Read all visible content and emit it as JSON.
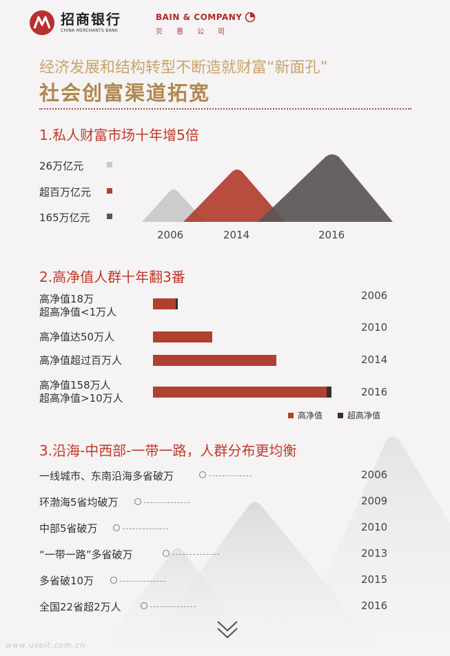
{
  "header": {
    "cmb_name_cn": "招商银行",
    "cmb_name_en": "CHINA MERCHANTS BANK",
    "bain_name_en": "BAIN & COMPANY",
    "bain_name_cn": "贝恩公司"
  },
  "title": {
    "line1": "经济发展和结构转型不断造就财富“新面孔”",
    "line2": "社会创富渠道拓宽"
  },
  "section1": {
    "title": "1.私人财富市场十年增5倍",
    "legend": [
      {
        "label": "26万亿元",
        "color": "#c8c8c8"
      },
      {
        "label": "超百万亿元",
        "color": "#b0402f"
      },
      {
        "label": "165万亿元",
        "color": "#5a5555"
      }
    ],
    "years": [
      "2006",
      "2014",
      "2016"
    ]
  },
  "section2": {
    "title": "2.高净值人群十年翻3番",
    "rows": [
      {
        "label_lines": [
          "高净值18万",
          "超高净值<1万人"
        ],
        "year": "2006",
        "hnw": 0.19,
        "uhnw": 0.01
      },
      {
        "label_lines": [
          "高净值达50万人"
        ],
        "year": "2010",
        "hnw": 0.33,
        "uhnw": 0
      },
      {
        "label_lines": [
          "高净值超过百万人"
        ],
        "year": "2014",
        "hnw": 0.69,
        "uhnw": 0
      },
      {
        "label_lines": [
          "高净值158万人",
          "超高净值>10万人"
        ],
        "year": "2016",
        "hnw": 0.97,
        "uhnw": 0.03
      }
    ],
    "legend": [
      {
        "label": "高净值",
        "color": "#b0402f"
      },
      {
        "label": "超高净值",
        "color": "#3a2e2e"
      }
    ]
  },
  "section3": {
    "title": "3.沿海-中西部-一带一路，人群分布更均衡",
    "rows": [
      {
        "label": "一线城市、东南沿海多省破万",
        "year": "2006"
      },
      {
        "label": "环渤海5省均破万",
        "year": "2009"
      },
      {
        "label": "中部5省破万",
        "year": "2010"
      },
      {
        "label": "“一带一路”多省破万",
        "year": "2013"
      },
      {
        "label": "多省破10万",
        "year": "2015"
      },
      {
        "label": "全国22省超2万人",
        "year": "2016"
      }
    ]
  },
  "footer": {
    "watermark": "www.useit.com.cn"
  }
}
